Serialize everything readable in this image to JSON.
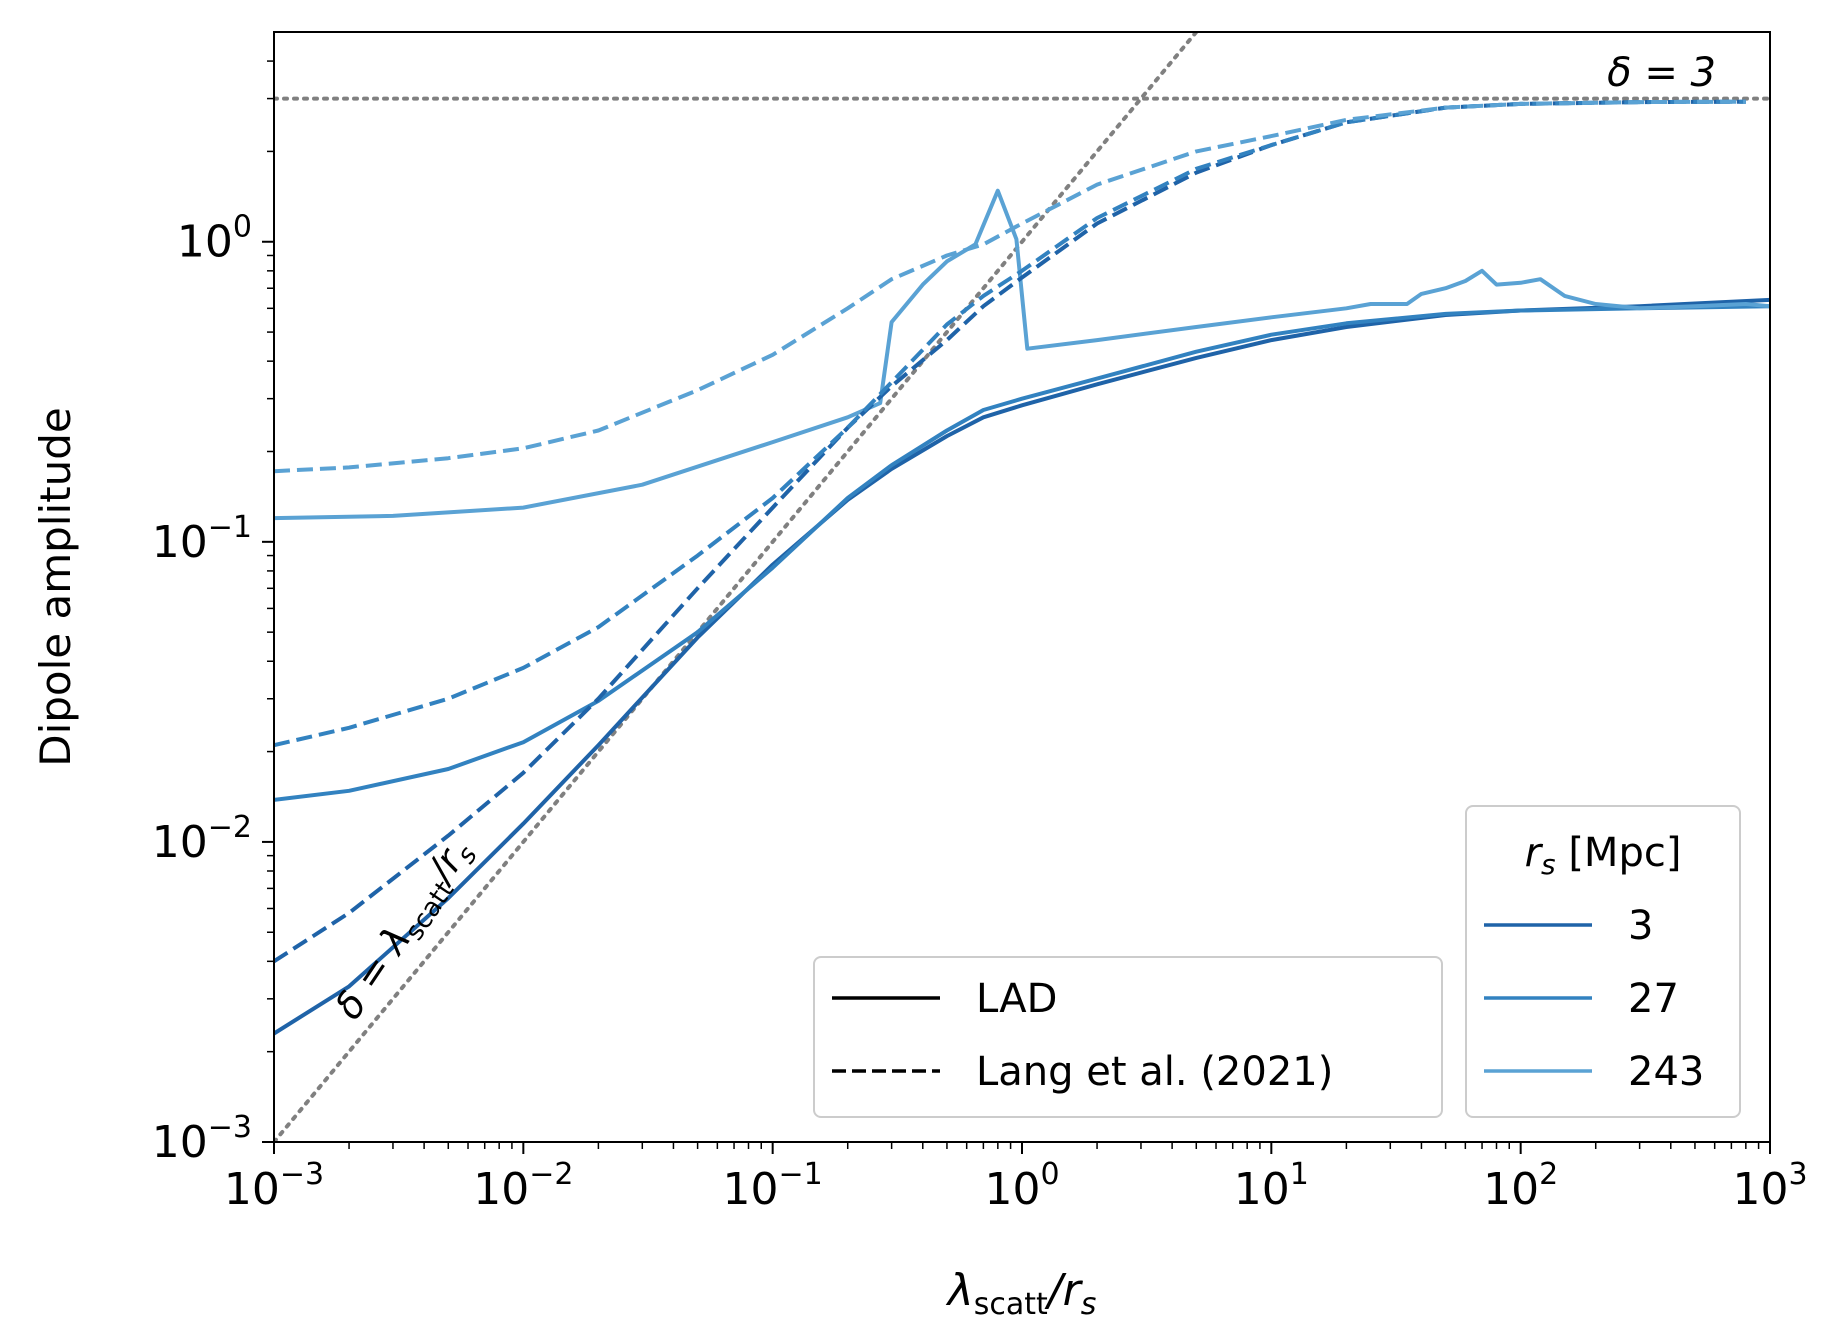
{
  "chart_data": {
    "type": "line",
    "title": "",
    "xlabel": {
      "main": "λ",
      "sub": "scatt",
      "rest": "/r",
      "sub2": "s"
    },
    "ylabel": "Dipole amplitude",
    "xscale": "log",
    "yscale": "log",
    "xlim": [
      0.001,
      1000
    ],
    "ylim": [
      0.001,
      5
    ],
    "xticks": [
      {
        "value": 0.001,
        "base": "10",
        "exp": "−3"
      },
      {
        "value": 0.01,
        "base": "10",
        "exp": "−2"
      },
      {
        "value": 0.1,
        "base": "10",
        "exp": "−1"
      },
      {
        "value": 1,
        "base": "10",
        "exp": "0"
      },
      {
        "value": 10,
        "base": "10",
        "exp": "1"
      },
      {
        "value": 100,
        "base": "10",
        "exp": "2"
      },
      {
        "value": 1000,
        "base": "10",
        "exp": "3"
      }
    ],
    "yticks": [
      {
        "value": 0.001,
        "base": "10",
        "exp": "−3"
      },
      {
        "value": 0.01,
        "base": "10",
        "exp": "−2"
      },
      {
        "value": 0.1,
        "base": "10",
        "exp": "−1"
      },
      {
        "value": 1,
        "base": "10",
        "exp": "0"
      }
    ],
    "grid": false,
    "colors": {
      "3": "#1f63a8",
      "27": "#3282c0",
      "243": "#5aa2d4",
      "reference": "#808080"
    },
    "series": [
      {
        "rs": "3",
        "model": "LAD",
        "style": "solid",
        "color": "#1f63a8",
        "x": [
          0.001,
          0.002,
          0.005,
          0.01,
          0.02,
          0.05,
          0.1,
          0.2,
          0.3,
          0.5,
          0.7,
          1,
          2,
          5,
          10,
          20,
          50,
          100,
          300,
          1000
        ],
        "y": [
          0.0023,
          0.0033,
          0.0065,
          0.0115,
          0.021,
          0.048,
          0.084,
          0.138,
          0.175,
          0.225,
          0.26,
          0.285,
          0.335,
          0.41,
          0.47,
          0.52,
          0.57,
          0.59,
          0.61,
          0.64
        ]
      },
      {
        "rs": "27",
        "model": "LAD",
        "style": "solid",
        "color": "#3282c0",
        "x": [
          0.001,
          0.002,
          0.005,
          0.01,
          0.02,
          0.05,
          0.1,
          0.2,
          0.3,
          0.5,
          0.7,
          1,
          2,
          5,
          10,
          20,
          50,
          100,
          300,
          1000
        ],
        "y": [
          0.0138,
          0.0148,
          0.0175,
          0.0215,
          0.0295,
          0.05,
          0.082,
          0.14,
          0.18,
          0.235,
          0.275,
          0.3,
          0.35,
          0.43,
          0.49,
          0.535,
          0.575,
          0.59,
          0.6,
          0.61
        ]
      },
      {
        "rs": "243",
        "model": "LAD",
        "style": "solid",
        "color": "#5aa2d4",
        "x": [
          0.001,
          0.003,
          0.01,
          0.03,
          0.1,
          0.2,
          0.27,
          0.3,
          0.4,
          0.5,
          0.65,
          0.8,
          0.95,
          1.05,
          2,
          5,
          10,
          20,
          25,
          35,
          40,
          50,
          60,
          70,
          80,
          100,
          120,
          150,
          200,
          300,
          500,
          800,
          1000
        ],
        "y": [
          0.12,
          0.122,
          0.13,
          0.155,
          0.215,
          0.26,
          0.29,
          0.54,
          0.72,
          0.86,
          0.98,
          1.48,
          1.02,
          0.44,
          0.47,
          0.52,
          0.56,
          0.6,
          0.62,
          0.62,
          0.67,
          0.7,
          0.74,
          0.8,
          0.72,
          0.73,
          0.75,
          0.66,
          0.62,
          0.6,
          0.61,
          0.62,
          0.61
        ]
      },
      {
        "rs": "3",
        "model": "Lang et al. (2021)",
        "style": "dashed",
        "color": "#1f63a8",
        "x": [
          0.001,
          0.002,
          0.005,
          0.01,
          0.02,
          0.05,
          0.1,
          0.2,
          0.3,
          0.5,
          0.7,
          1,
          2,
          5,
          10,
          20,
          50,
          100,
          300,
          800
        ],
        "y": [
          0.004,
          0.0058,
          0.0105,
          0.017,
          0.03,
          0.07,
          0.13,
          0.24,
          0.33,
          0.47,
          0.61,
          0.76,
          1.15,
          1.7,
          2.1,
          2.5,
          2.8,
          2.88,
          2.92,
          2.93
        ]
      },
      {
        "rs": "27",
        "model": "Lang et al. (2021)",
        "style": "dashed",
        "color": "#3282c0",
        "x": [
          0.001,
          0.002,
          0.005,
          0.01,
          0.02,
          0.05,
          0.1,
          0.2,
          0.3,
          0.5,
          0.7,
          1,
          2,
          5,
          10,
          20,
          50,
          100,
          300,
          800
        ],
        "y": [
          0.021,
          0.024,
          0.03,
          0.038,
          0.052,
          0.09,
          0.14,
          0.24,
          0.34,
          0.53,
          0.66,
          0.8,
          1.2,
          1.75,
          2.1,
          2.5,
          2.8,
          2.88,
          2.92,
          2.93
        ]
      },
      {
        "rs": "243",
        "model": "Lang et al. (2021)",
        "style": "dashed",
        "color": "#5aa2d4",
        "x": [
          0.001,
          0.002,
          0.005,
          0.01,
          0.02,
          0.05,
          0.1,
          0.2,
          0.3,
          0.5,
          0.7,
          1,
          2,
          5,
          10,
          20,
          50,
          100,
          300,
          800
        ],
        "y": [
          0.172,
          0.177,
          0.19,
          0.205,
          0.235,
          0.32,
          0.42,
          0.6,
          0.75,
          0.9,
          0.98,
          1.15,
          1.55,
          2.0,
          2.25,
          2.55,
          2.8,
          2.88,
          2.92,
          2.93
        ]
      }
    ],
    "reference_lines": [
      {
        "kind": "horizontal",
        "y": 3,
        "label": "δ = 3",
        "style": "dotted",
        "color": "#808080"
      },
      {
        "kind": "diagonal",
        "equation": "δ = λscatt / rs",
        "label_main": "δ = λ",
        "label_sub": "scatt",
        "label_rest": "/r",
        "label_sub2": "s",
        "style": "dotted",
        "color": "#808080"
      }
    ],
    "legends": [
      {
        "placement": "bottom-center-right",
        "title": "",
        "entries": [
          {
            "label": "LAD",
            "style": "solid",
            "color": "#000000"
          },
          {
            "label": "Lang et al. (2021)",
            "style": "dashed",
            "color": "#000000"
          }
        ]
      },
      {
        "placement": "bottom-right",
        "title": {
          "main": "r",
          "sub": "s",
          "rest": " [Mpc]"
        },
        "entries": [
          {
            "label": "3",
            "style": "solid",
            "color": "#1f63a8"
          },
          {
            "label": "27",
            "style": "solid",
            "color": "#3282c0"
          },
          {
            "label": "243",
            "style": "solid",
            "color": "#5aa2d4"
          }
        ]
      }
    ]
  }
}
